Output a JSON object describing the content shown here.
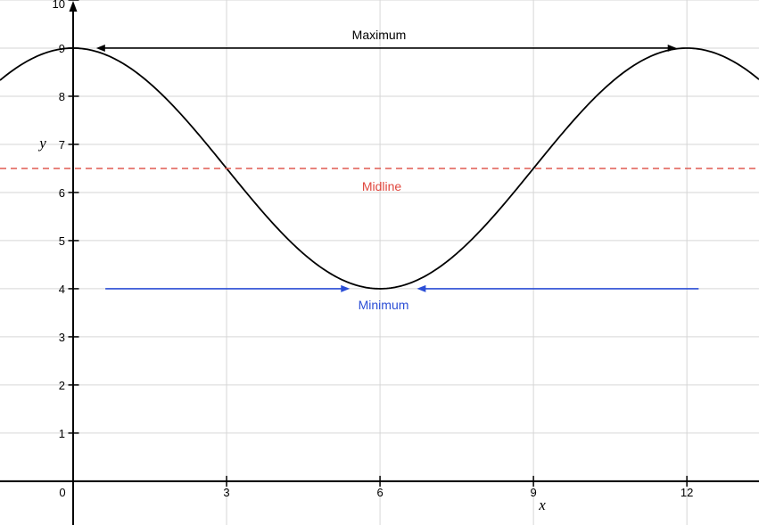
{
  "page": {
    "background": "#ffffff"
  },
  "chart_data": {
    "type": "line",
    "subtype": "function-plot",
    "title": "",
    "xlabel": "x",
    "ylabel": "y",
    "x_range": [
      -1.43,
      13.41
    ],
    "y_range": [
      -0.91,
      10.0
    ],
    "x_ticks": [
      0,
      3,
      6,
      9,
      12
    ],
    "y_ticks": [
      1,
      2,
      3,
      4,
      5,
      6,
      7,
      8,
      9,
      10
    ],
    "grid": {
      "horizontal_lines": [
        1,
        2,
        3,
        4,
        5,
        6,
        7,
        8,
        9,
        10
      ],
      "vertical_lines": [
        3,
        6,
        9,
        12
      ],
      "color": "#d6d6d6"
    },
    "axis_color": "#000000",
    "curve_color": "#000000",
    "function": {
      "expression": "y = 6.5 + 2.5*cos(2*pi*x/12)",
      "midline_value": 6.5,
      "amplitude": 2.5,
      "period": 12,
      "max_value": 9,
      "min_value": 4
    },
    "key_points": [
      {
        "x": 0,
        "y": 9
      },
      {
        "x": 3,
        "y": 6.5
      },
      {
        "x": 6,
        "y": 4
      },
      {
        "x": 9,
        "y": 6.5
      },
      {
        "x": 12,
        "y": 9
      }
    ],
    "annotations": {
      "maximum": {
        "label": "Maximum",
        "color": "#000000",
        "line_color": "#000000",
        "y": 9,
        "x_start": 0.45,
        "x_end": 11.8,
        "style": "solid",
        "arrows": "both-outward"
      },
      "midline": {
        "label": "Midline",
        "color": "#e0463d",
        "line_color": "#e05a50",
        "y": 6.5,
        "x_start": -1.43,
        "x_end": 13.41,
        "style": "dashed",
        "arrows": "none"
      },
      "minimum": {
        "label": "Minimum",
        "color": "#2b4ed6",
        "line_color": "#2b4ed6",
        "y": 4,
        "style": "solid",
        "segments": [
          {
            "x_start": 0.63,
            "x_end": 5.41,
            "arrow": "end-pointing-right"
          },
          {
            "x_start": 6.72,
            "x_end": 12.23,
            "arrow": "start-pointing-left"
          }
        ]
      }
    }
  }
}
